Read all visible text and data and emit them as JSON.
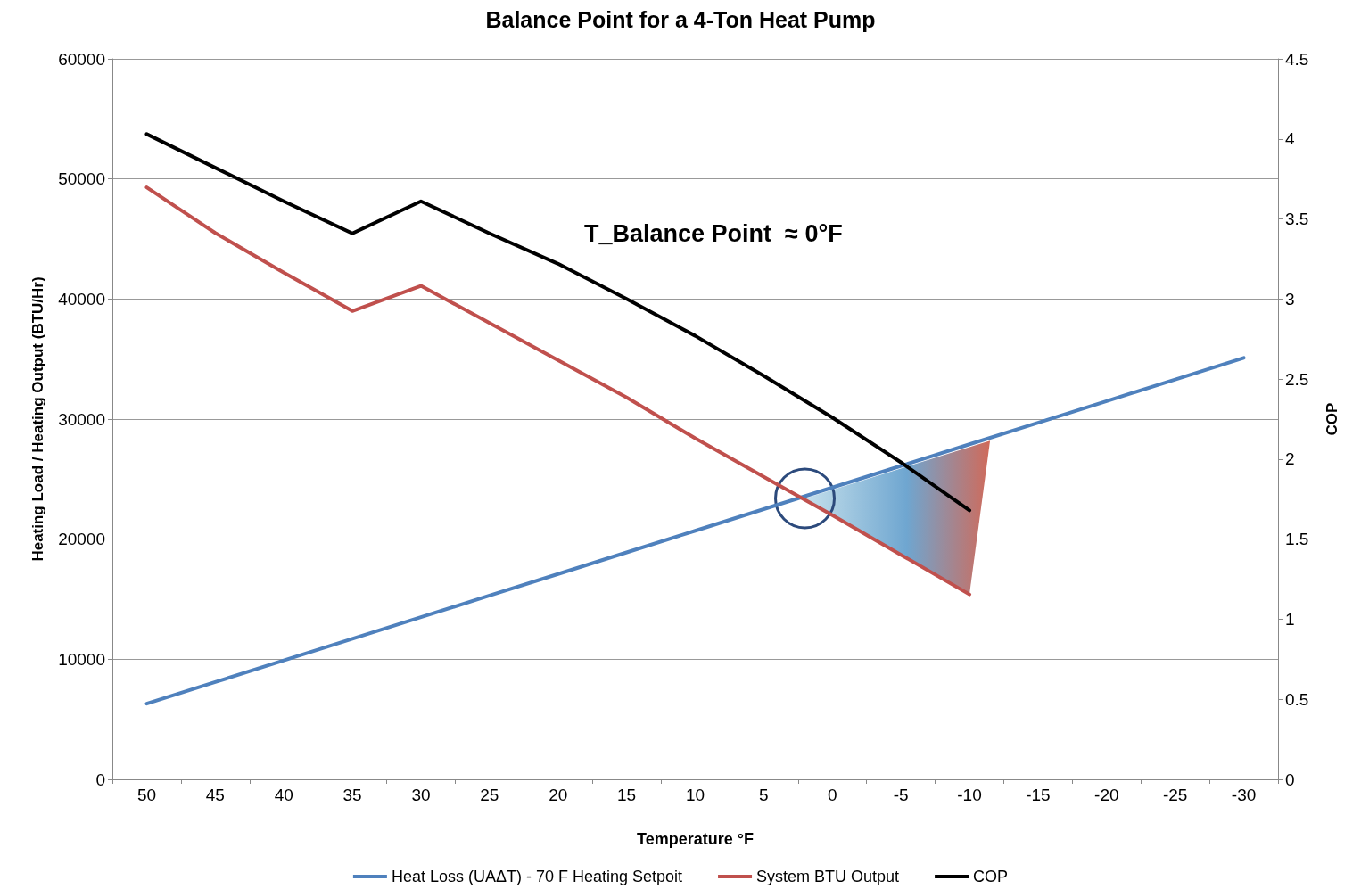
{
  "chart_data": {
    "type": "line",
    "title": "Balance Point for a 4-Ton Heat Pump",
    "xlabel": "Temperature °F",
    "ylabel": "Heating Load / Heating Output (BTU/Hr)",
    "y2label": "COP",
    "categories": [
      "50",
      "45",
      "40",
      "35",
      "30",
      "25",
      "20",
      "15",
      "10",
      "5",
      "0",
      "-5",
      "-10",
      "-15",
      "-20",
      "-25",
      "-30"
    ],
    "series": [
      {
        "name": "Heat Loss (UAΔT) - 70 F Heating Setpoit",
        "color": "#4f81bd",
        "values": [
          6300,
          8100,
          9900,
          11700,
          13500,
          15300,
          17100,
          18900,
          20700,
          22500,
          24300,
          26100,
          27900,
          29700,
          31500,
          33300,
          35100
        ]
      },
      {
        "name": "System BTU Output",
        "color": "#c0504d",
        "values": [
          49300,
          45500,
          42200,
          39000,
          41100,
          38000,
          34900,
          31800,
          28400,
          25200,
          22000,
          18700,
          15400,
          null,
          null,
          null,
          null
        ]
      },
      {
        "name": "COP",
        "color": "#000000",
        "axis": "y2",
        "values": [
          4.03,
          3.82,
          3.61,
          3.41,
          3.61,
          3.41,
          3.22,
          3.0,
          2.77,
          2.52,
          2.26,
          1.98,
          1.68,
          null,
          null,
          null,
          null
        ]
      }
    ],
    "ylim": [
      0,
      60000
    ],
    "yticks": [
      0,
      10000,
      20000,
      30000,
      40000,
      50000,
      60000
    ],
    "y2lim": [
      0,
      4.5
    ],
    "y2ticks": [
      0,
      0.5,
      1,
      1.5,
      2,
      2.5,
      3,
      3.5,
      4,
      4.5
    ],
    "annotations": [
      "T_Balance Point  ≈ 0°F"
    ],
    "grid": "y",
    "legend": "bottom",
    "marker": "none",
    "line_style": "solid"
  }
}
